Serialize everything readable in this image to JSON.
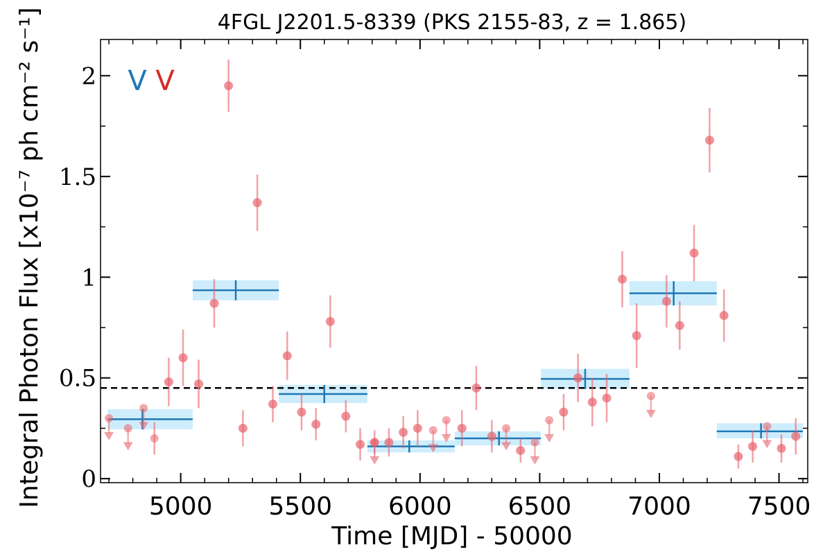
{
  "chart_data": {
    "type": "scatter",
    "title": "4FGL J2201.5-8339 (PKS 2155-83, z = 1.865)",
    "xlabel": "Time [MJD] - 50000",
    "ylabel": "Integral Photon Flux [x10⁻⁷ ph cm⁻² s⁻¹]",
    "xlim": [
      4665,
      7620
    ],
    "ylim": [
      -0.02,
      2.18
    ],
    "x_ticks": [
      5000,
      5500,
      6000,
      6500,
      7000,
      7500
    ],
    "x_tick_labels": [
      "5000",
      "5500",
      "6000",
      "6500",
      "7000",
      "7500"
    ],
    "y_ticks": [
      0,
      0.5,
      1,
      1.5,
      2
    ],
    "y_tick_labels": [
      "0",
      "0.5",
      "1",
      "1.5",
      "2"
    ],
    "reference_level": 0.45,
    "markers": [
      {
        "text": "V",
        "color": "#1f77b4"
      },
      {
        "text": "V",
        "color": "#d62728"
      }
    ],
    "colors": {
      "detection": "#e8646c",
      "binned": "#1f77b4",
      "binned_band": "#c6eafc",
      "reference": "#000000"
    },
    "series": [
      {
        "type": "errorbar",
        "points": [
          {
            "x": 4950,
            "y": 0.48,
            "err": 0.12
          },
          {
            "x": 5010,
            "y": 0.6,
            "err": 0.14
          },
          {
            "x": 5075,
            "y": 0.47,
            "err": 0.12
          },
          {
            "x": 5140,
            "y": 0.87,
            "err": 0.12
          },
          {
            "x": 5200,
            "y": 1.95,
            "err": 0.13
          },
          {
            "x": 5260,
            "y": 0.25,
            "err": 0.09
          },
          {
            "x": 5320,
            "y": 1.37,
            "err": 0.14
          },
          {
            "x": 5385,
            "y": 0.37,
            "err": 0.09
          },
          {
            "x": 5445,
            "y": 0.61,
            "err": 0.12
          },
          {
            "x": 5505,
            "y": 0.33,
            "err": 0.09
          },
          {
            "x": 5565,
            "y": 0.27,
            "err": 0.08
          },
          {
            "x": 5625,
            "y": 0.78,
            "err": 0.13
          },
          {
            "x": 5690,
            "y": 0.31,
            "err": 0.08
          },
          {
            "x": 5750,
            "y": 0.17,
            "err": 0.08
          },
          {
            "x": 5810,
            "y": 0.18,
            "err": 0.06
          },
          {
            "x": 5870,
            "y": 0.18,
            "err": 0.07
          },
          {
            "x": 5930,
            "y": 0.23,
            "err": 0.08
          },
          {
            "x": 5990,
            "y": 0.25,
            "err": 0.09
          },
          {
            "x": 6175,
            "y": 0.25,
            "err": 0.09
          },
          {
            "x": 6235,
            "y": 0.45,
            "err": 0.11
          },
          {
            "x": 6300,
            "y": 0.21,
            "err": 0.08
          },
          {
            "x": 6420,
            "y": 0.14,
            "err": 0.06
          },
          {
            "x": 6600,
            "y": 0.33,
            "err": 0.09
          },
          {
            "x": 6660,
            "y": 0.5,
            "err": 0.12
          },
          {
            "x": 6720,
            "y": 0.38,
            "err": 0.12
          },
          {
            "x": 6780,
            "y": 0.4,
            "err": 0.12
          },
          {
            "x": 6845,
            "y": 0.99,
            "err": 0.14
          },
          {
            "x": 6905,
            "y": 0.71,
            "err": 0.16
          },
          {
            "x": 7030,
            "y": 0.88,
            "err": 0.13
          },
          {
            "x": 7085,
            "y": 0.76,
            "err": 0.12
          },
          {
            "x": 7145,
            "y": 1.12,
            "err": 0.14
          },
          {
            "x": 7210,
            "y": 1.68,
            "err": 0.16
          },
          {
            "x": 7270,
            "y": 0.81,
            "err": 0.13
          },
          {
            "x": 7330,
            "y": 0.11,
            "err": 0.06
          },
          {
            "x": 7390,
            "y": 0.16,
            "err": 0.08
          },
          {
            "x": 7510,
            "y": 0.15,
            "err": 0.07
          },
          {
            "x": 7570,
            "y": 0.21,
            "err": 0.09
          }
        ]
      },
      {
        "type": "upper_limit",
        "points": [
          {
            "x": 4700,
            "y": 0.3
          },
          {
            "x": 4780,
            "y": 0.25
          },
          {
            "x": 4845,
            "y": 0.35
          },
          {
            "x": 4890,
            "y": 0.2,
            "err": 0.08
          },
          {
            "x": 5810,
            "y": 0.18
          },
          {
            "x": 6055,
            "y": 0.24
          },
          {
            "x": 6110,
            "y": 0.29
          },
          {
            "x": 6360,
            "y": 0.25
          },
          {
            "x": 6480,
            "y": 0.18
          },
          {
            "x": 6540,
            "y": 0.29
          },
          {
            "x": 6965,
            "y": 0.41
          },
          {
            "x": 7450,
            "y": 0.26
          }
        ]
      },
      {
        "type": "binned",
        "bins": [
          {
            "x0": 4695,
            "x1": 5050,
            "y": 0.295,
            "y_lo": 0.245,
            "y_hi": 0.345,
            "x_center": 4840
          },
          {
            "x0": 5050,
            "x1": 5410,
            "y": 0.935,
            "y_lo": 0.885,
            "y_hi": 0.985,
            "x_center": 5230
          },
          {
            "x0": 5410,
            "x1": 5780,
            "y": 0.42,
            "y_lo": 0.375,
            "y_hi": 0.465,
            "x_center": 5600
          },
          {
            "x0": 5780,
            "x1": 6145,
            "y": 0.16,
            "y_lo": 0.13,
            "y_hi": 0.19,
            "x_center": 5955
          },
          {
            "x0": 6145,
            "x1": 6505,
            "y": 0.2,
            "y_lo": 0.165,
            "y_hi": 0.235,
            "x_center": 6330
          },
          {
            "x0": 6505,
            "x1": 6875,
            "y": 0.495,
            "y_lo": 0.445,
            "y_hi": 0.545,
            "x_center": 6690
          },
          {
            "x0": 6875,
            "x1": 7240,
            "y": 0.92,
            "y_lo": 0.86,
            "y_hi": 0.98,
            "x_center": 7060
          },
          {
            "x0": 7240,
            "x1": 7600,
            "y": 0.235,
            "y_lo": 0.2,
            "y_hi": 0.275,
            "x_center": 7425
          }
        ]
      }
    ]
  }
}
